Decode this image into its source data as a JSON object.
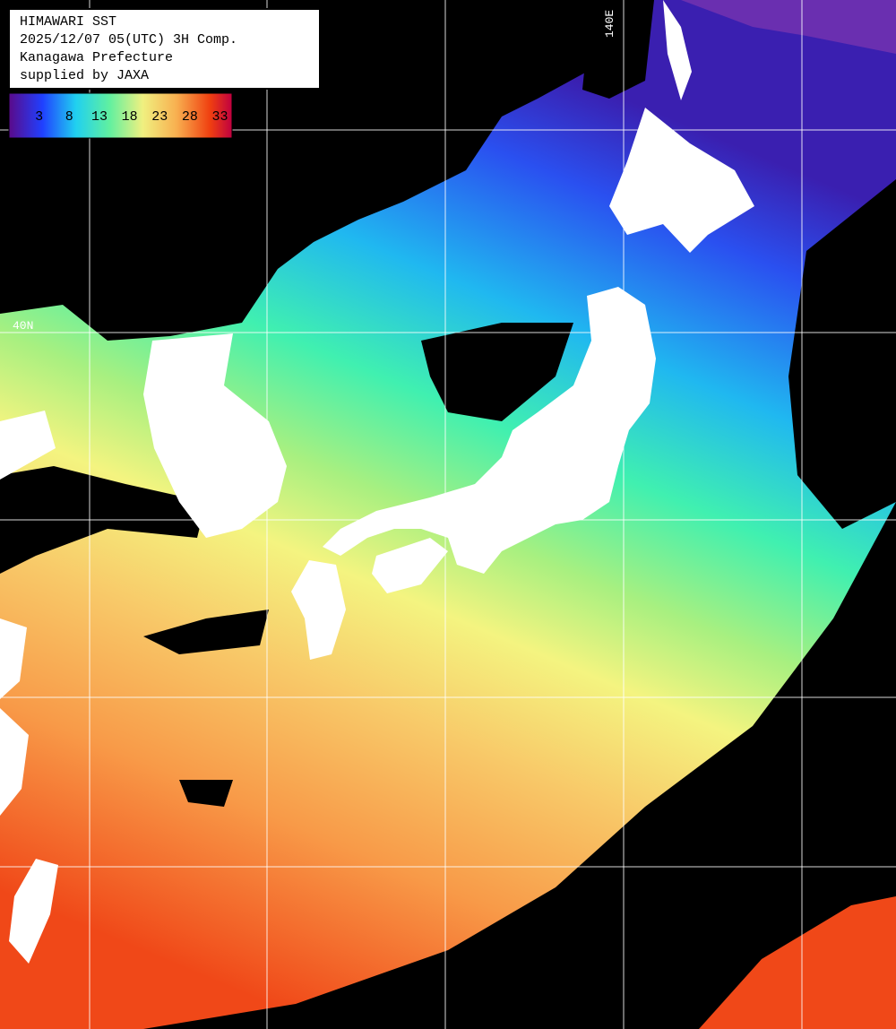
{
  "header": {
    "lines": [
      "HIMAWARI SST",
      "2025/12/07 05(UTC) 3H Comp.",
      "Kanagawa Prefecture",
      "supplied by JAXA"
    ]
  },
  "colorbar": {
    "range": [
      -2,
      35
    ],
    "ticks": [
      3,
      8,
      13,
      18,
      23,
      28,
      33
    ]
  },
  "grid_labels": {
    "lat": "40N",
    "lon": "140E"
  }
}
